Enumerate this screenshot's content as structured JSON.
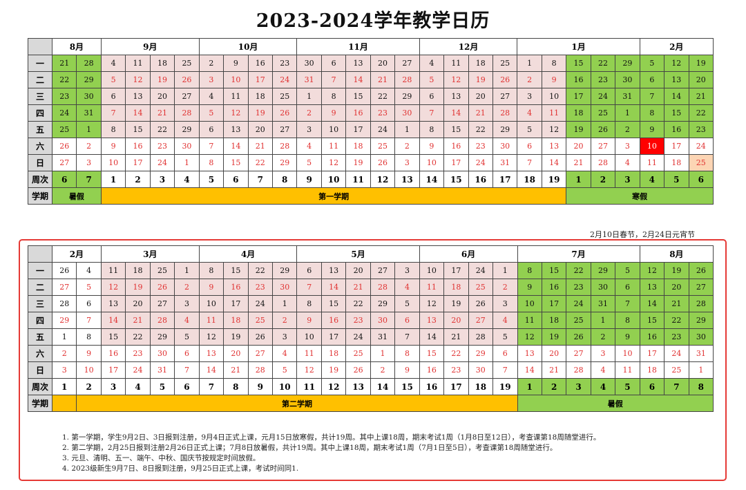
{
  "title": "2023-2024学年教学日历",
  "labels": {
    "week_row": "周次",
    "term_row": "学期"
  },
  "weekdays": [
    "一",
    "二",
    "三",
    "四",
    "五",
    "六",
    "日"
  ],
  "table1": {
    "months": [
      {
        "name": "8月",
        "span": 2
      },
      {
        "name": "9月",
        "span": 4
      },
      {
        "name": "10月",
        "span": 4
      },
      {
        "name": "11月",
        "span": 5
      },
      {
        "name": "12月",
        "span": 4
      },
      {
        "name": "1月",
        "span": 5
      },
      {
        "name": "2月",
        "span": 3
      }
    ],
    "days": [
      [
        "21",
        "28",
        "4",
        "11",
        "18",
        "25",
        "2",
        "9",
        "16",
        "23",
        "30",
        "6",
        "13",
        "20",
        "27",
        "4",
        "11",
        "18",
        "25",
        "1",
        "8",
        "15",
        "22",
        "29",
        "5",
        "12",
        "19"
      ],
      [
        "22",
        "29",
        "5",
        "12",
        "19",
        "26",
        "3",
        "10",
        "17",
        "24",
        "31",
        "7",
        "14",
        "21",
        "28",
        "5",
        "12",
        "19",
        "26",
        "2",
        "9",
        "16",
        "23",
        "30",
        "6",
        "13",
        "20"
      ],
      [
        "23",
        "30",
        "6",
        "13",
        "20",
        "27",
        "4",
        "11",
        "18",
        "25",
        "1",
        "8",
        "15",
        "22",
        "29",
        "6",
        "13",
        "20",
        "27",
        "3",
        "10",
        "17",
        "24",
        "31",
        "7",
        "14",
        "21"
      ],
      [
        "24",
        "31",
        "7",
        "14",
        "21",
        "28",
        "5",
        "12",
        "19",
        "26",
        "2",
        "9",
        "16",
        "23",
        "30",
        "7",
        "14",
        "21",
        "28",
        "4",
        "11",
        "18",
        "25",
        "1",
        "8",
        "15",
        "22"
      ],
      [
        "25",
        "1",
        "8",
        "15",
        "22",
        "29",
        "6",
        "13",
        "20",
        "27",
        "3",
        "10",
        "17",
        "24",
        "1",
        "8",
        "15",
        "22",
        "29",
        "5",
        "12",
        "19",
        "26",
        "2",
        "9",
        "16",
        "23"
      ],
      [
        "26",
        "2",
        "9",
        "16",
        "23",
        "30",
        "7",
        "14",
        "21",
        "28",
        "4",
        "11",
        "18",
        "25",
        "2",
        "9",
        "16",
        "23",
        "30",
        "6",
        "13",
        "20",
        "27",
        "3",
        "10",
        "17",
        "24"
      ],
      [
        "27",
        "3",
        "10",
        "17",
        "24",
        "1",
        "8",
        "15",
        "22",
        "29",
        "5",
        "12",
        "19",
        "26",
        "3",
        "10",
        "17",
        "24",
        "31",
        "7",
        "14",
        "21",
        "28",
        "4",
        "11",
        "18",
        "25"
      ]
    ],
    "weeks": [
      "6",
      "7",
      "1",
      "2",
      "3",
      "4",
      "5",
      "6",
      "7",
      "8",
      "9",
      "10",
      "11",
      "12",
      "13",
      "14",
      "15",
      "16",
      "17",
      "18",
      "19",
      "1",
      "2",
      "3",
      "4",
      "5",
      "6"
    ],
    "terms": [
      {
        "label": "暑假",
        "span": 2,
        "style": "gb"
      },
      {
        "label": "第一学期",
        "span": 19,
        "style": "y"
      },
      {
        "label": "寒假",
        "span": 6,
        "style": "gb"
      }
    ],
    "note": "2月10日春节，2月24日元宵节"
  },
  "table2": {
    "months": [
      {
        "name": "2月",
        "span": 2
      },
      {
        "name": "3月",
        "span": 4
      },
      {
        "name": "4月",
        "span": 4
      },
      {
        "name": "5月",
        "span": 5
      },
      {
        "name": "6月",
        "span": 4
      },
      {
        "name": "7月",
        "span": 5
      },
      {
        "name": "8月",
        "span": 3
      }
    ],
    "days": [
      [
        "26",
        "4",
        "11",
        "18",
        "25",
        "1",
        "8",
        "15",
        "22",
        "29",
        "6",
        "13",
        "20",
        "27",
        "3",
        "10",
        "17",
        "24",
        "1",
        "8",
        "15",
        "22",
        "29",
        "5",
        "12",
        "19",
        "26"
      ],
      [
        "27",
        "5",
        "12",
        "19",
        "26",
        "2",
        "9",
        "16",
        "23",
        "30",
        "7",
        "14",
        "21",
        "28",
        "4",
        "11",
        "18",
        "25",
        "2",
        "9",
        "16",
        "23",
        "30",
        "6",
        "13",
        "20",
        "27"
      ],
      [
        "28",
        "6",
        "13",
        "20",
        "27",
        "3",
        "10",
        "17",
        "24",
        "1",
        "8",
        "15",
        "22",
        "29",
        "5",
        "12",
        "19",
        "26",
        "3",
        "10",
        "17",
        "24",
        "31",
        "7",
        "14",
        "21",
        "28"
      ],
      [
        "29",
        "7",
        "14",
        "21",
        "28",
        "4",
        "11",
        "18",
        "25",
        "2",
        "9",
        "16",
        "23",
        "30",
        "6",
        "13",
        "20",
        "27",
        "4",
        "11",
        "18",
        "25",
        "1",
        "8",
        "15",
        "22",
        "29"
      ],
      [
        "1",
        "8",
        "15",
        "22",
        "29",
        "5",
        "12",
        "19",
        "26",
        "3",
        "10",
        "17",
        "24",
        "31",
        "7",
        "14",
        "21",
        "28",
        "5",
        "12",
        "19",
        "26",
        "2",
        "9",
        "16",
        "23",
        "30"
      ],
      [
        "2",
        "9",
        "16",
        "23",
        "30",
        "6",
        "13",
        "20",
        "27",
        "4",
        "11",
        "18",
        "25",
        "1",
        "8",
        "15",
        "22",
        "29",
        "6",
        "13",
        "20",
        "27",
        "3",
        "10",
        "17",
        "24",
        "31"
      ],
      [
        "3",
        "10",
        "17",
        "24",
        "31",
        "7",
        "14",
        "21",
        "28",
        "5",
        "12",
        "19",
        "26",
        "2",
        "9",
        "16",
        "23",
        "30",
        "7",
        "14",
        "21",
        "28",
        "4",
        "11",
        "18",
        "25",
        "1"
      ]
    ],
    "weeks": [
      "1",
      "2",
      "3",
      "4",
      "5",
      "6",
      "7",
      "8",
      "9",
      "10",
      "11",
      "12",
      "13",
      "14",
      "15",
      "16",
      "17",
      "18",
      "19",
      "1",
      "2",
      "3",
      "4",
      "5",
      "6",
      "7",
      "8"
    ],
    "terms": [
      {
        "label": "",
        "span": 1,
        "style": "y"
      },
      {
        "label": "第二学期",
        "span": 18,
        "style": "y"
      },
      {
        "label": "暑假",
        "span": 8,
        "style": "gb"
      }
    ]
  },
  "notes": [
    "1. 第一学期，学生9月2日、3日报到注册，9月4日正式上课，元月15日放寒假，共计19周。其中上课18周，期末考试1周（1月8日至12日），考查课第18周随堂进行。",
    "2. 第二学期，2月25日报到注册2月26日正式上课；7月8日放暑假，共计19周。其中上课18周，期末考试1周（7月1日至5日），考查课第18周随堂进行。",
    "3. 元旦、清明、五一、端午、中秋、国庆节按规定时间放假。",
    "4. 2023级新生9月7日、8日报到注册，9月25日正式上课，考试时间同1."
  ],
  "colors": {
    "pink": "#f2dcdb",
    "green": "#92d050",
    "yellow": "#ffc000",
    "holiday_red": "#ff0000",
    "lantern_orange": "#fcd5b4",
    "weekend_text": "#e03030",
    "frame": "#e53935"
  }
}
